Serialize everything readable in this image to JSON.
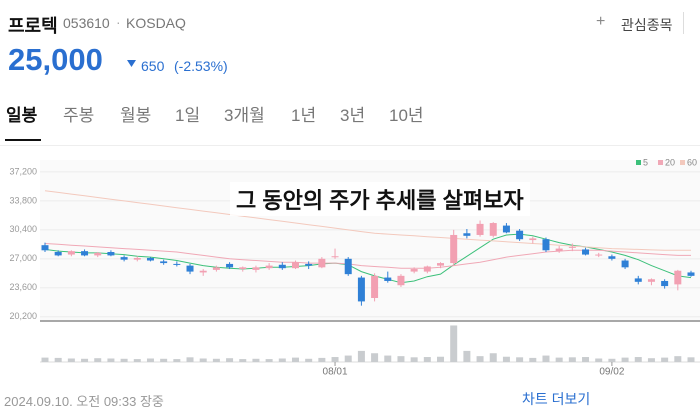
{
  "header": {
    "name": "프로텍",
    "code": "053610",
    "market": "KOSDAQ",
    "watch": "관심종목",
    "price": "25,000",
    "change": "650",
    "change_rate": "(-2.53%)"
  },
  "tabs": [
    "일봉",
    "주봉",
    "월봉",
    "1일",
    "3개월",
    "1년",
    "3년",
    "10년"
  ],
  "overlay": "그 동안의 주가 추세를 살펴보자",
  "footer": {
    "timestamp": "2024.09.10. 오전 09:33 장중",
    "more": "차트 더보기"
  },
  "chart_data": {
    "type": "candlestick",
    "categories": [
      null,
      null,
      null,
      null,
      null,
      null,
      null,
      null,
      null,
      null,
      null,
      null,
      null,
      null,
      null,
      null,
      null,
      null,
      null,
      null,
      null,
      null,
      "08/01",
      null,
      null,
      null,
      null,
      null,
      null,
      null,
      null,
      null,
      null,
      null,
      null,
      null,
      null,
      null,
      null,
      null,
      null,
      null,
      null,
      "09/02",
      null,
      null,
      null,
      null,
      null,
      null
    ],
    "open": [
      28600,
      27800,
      27500,
      27900,
      27400,
      27800,
      27200,
      26900,
      27100,
      26700,
      26400,
      26200,
      25400,
      25700,
      26400,
      25800,
      25700,
      25900,
      26300,
      25900,
      26400,
      26000,
      27200,
      27000,
      24800,
      22400,
      24800,
      23900,
      25500,
      25500,
      26200,
      26500,
      30000,
      29800,
      29700,
      30900,
      30300,
      29200,
      29300,
      27900,
      28300,
      28100,
      27400,
      27300,
      26800,
      24700,
      24300,
      24400,
      24000,
      25400
    ],
    "high": [
      28900,
      28000,
      28000,
      28100,
      27800,
      28000,
      27400,
      27300,
      27200,
      26900,
      26700,
      26400,
      25800,
      26200,
      26600,
      26100,
      26200,
      26500,
      26600,
      26800,
      26700,
      27200,
      28200,
      27200,
      25000,
      25300,
      25500,
      25200,
      26000,
      26200,
      26600,
      30400,
      30500,
      31500,
      31300,
      31200,
      30500,
      29600,
      29500,
      28500,
      28800,
      28300,
      27700,
      27500,
      27000,
      25000,
      24700,
      24600,
      25700,
      25600
    ],
    "low": [
      27800,
      27300,
      27300,
      27300,
      27200,
      27300,
      26700,
      26700,
      26700,
      26300,
      26100,
      25200,
      25000,
      25500,
      25800,
      25500,
      25400,
      25700,
      25700,
      25800,
      25800,
      25900,
      27000,
      25000,
      21500,
      22000,
      24200,
      23700,
      25300,
      25300,
      25900,
      26200,
      29400,
      29600,
      29500,
      30000,
      29100,
      28800,
      27800,
      27700,
      27900,
      27400,
      27200,
      26800,
      25800,
      24000,
      23900,
      23500,
      23300,
      24900
    ],
    "close": [
      28000,
      27400,
      27900,
      27400,
      27700,
      27400,
      26900,
      27100,
      26800,
      26500,
      26300,
      25500,
      25600,
      26000,
      26000,
      26000,
      26000,
      26200,
      25900,
      26600,
      26200,
      27000,
      27300,
      25200,
      22000,
      25000,
      24400,
      25000,
      25800,
      26100,
      26500,
      29800,
      29700,
      31100,
      31200,
      30100,
      29300,
      29400,
      28000,
      28200,
      28400,
      27500,
      27500,
      27000,
      26000,
      24300,
      24600,
      23800,
      25600,
      25000
    ],
    "volume": [
      150000,
      140000,
      120000,
      110000,
      130000,
      120000,
      110000,
      100000,
      120000,
      110000,
      100000,
      160000,
      120000,
      110000,
      130000,
      100000,
      110000,
      100000,
      120000,
      150000,
      110000,
      140000,
      170000,
      220000,
      380000,
      300000,
      220000,
      200000,
      160000,
      170000,
      180000,
      1250000,
      380000,
      200000,
      300000,
      180000,
      160000,
      140000,
      220000,
      150000,
      160000,
      170000,
      120000,
      110000,
      150000,
      170000,
      130000,
      150000,
      200000,
      160000
    ],
    "series": [
      {
        "name": "5",
        "color": "#3cc07a",
        "values": [
          28100,
          27900,
          27800,
          27700,
          27700,
          27600,
          27500,
          27300,
          27200,
          27000,
          26800,
          26500,
          26200,
          26000,
          25900,
          25800,
          25900,
          26000,
          26000,
          26100,
          26200,
          26400,
          26500,
          26300,
          25500,
          25000,
          24600,
          24200,
          24400,
          24900,
          25200,
          26300,
          27300,
          28300,
          29300,
          29800,
          29900,
          29700,
          29300,
          28900,
          28600,
          28400,
          28100,
          27800,
          27400,
          26900,
          26200,
          25600,
          25000,
          24800
        ]
      },
      {
        "name": "20",
        "color": "#f0a8b6",
        "values": [
          28800,
          28700,
          28600,
          28500,
          28400,
          28300,
          28200,
          28100,
          28000,
          27900,
          27800,
          27600,
          27400,
          27200,
          27000,
          26900,
          26800,
          26700,
          26600,
          26600,
          26500,
          26500,
          26500,
          26400,
          26200,
          26100,
          26000,
          25900,
          25900,
          25900,
          26000,
          26200,
          26400,
          26600,
          26900,
          27200,
          27400,
          27600,
          27800,
          27900,
          28000,
          28000,
          28000,
          27900,
          27800,
          27700,
          27600,
          27500,
          27400,
          27400
        ]
      },
      {
        "name": "60",
        "color": "#f3c9bd",
        "values": [
          35000,
          34800,
          34600,
          34400,
          34200,
          34000,
          33800,
          33600,
          33400,
          33200,
          33000,
          32800,
          32600,
          32400,
          32200,
          32000,
          31800,
          31600,
          31400,
          31200,
          31000,
          30800,
          30600,
          30400,
          30200,
          30000,
          29900,
          29800,
          29700,
          29600,
          29500,
          29400,
          29300,
          29200,
          29100,
          29000,
          28900,
          28800,
          28700,
          28600,
          28500,
          28400,
          28300,
          28200,
          28150,
          28100,
          28050,
          28000,
          28000,
          28000
        ]
      }
    ],
    "up_color": "#f2a0b2",
    "down_color": "#2f80d6",
    "volume_color": "#c9cccf",
    "ylim": [
      19700,
      38600
    ],
    "yticks": [
      {
        "value": 37200,
        "label": "37,200"
      },
      {
        "value": 33800,
        "label": "33,800"
      },
      {
        "value": 30400,
        "label": "30,400"
      },
      {
        "value": 27000,
        "label": "27,000"
      },
      {
        "value": 23600,
        "label": "23,600"
      },
      {
        "value": 20200,
        "label": "20,200"
      }
    ],
    "volume_lim": [
      0,
      1300000
    ],
    "grid": true
  }
}
